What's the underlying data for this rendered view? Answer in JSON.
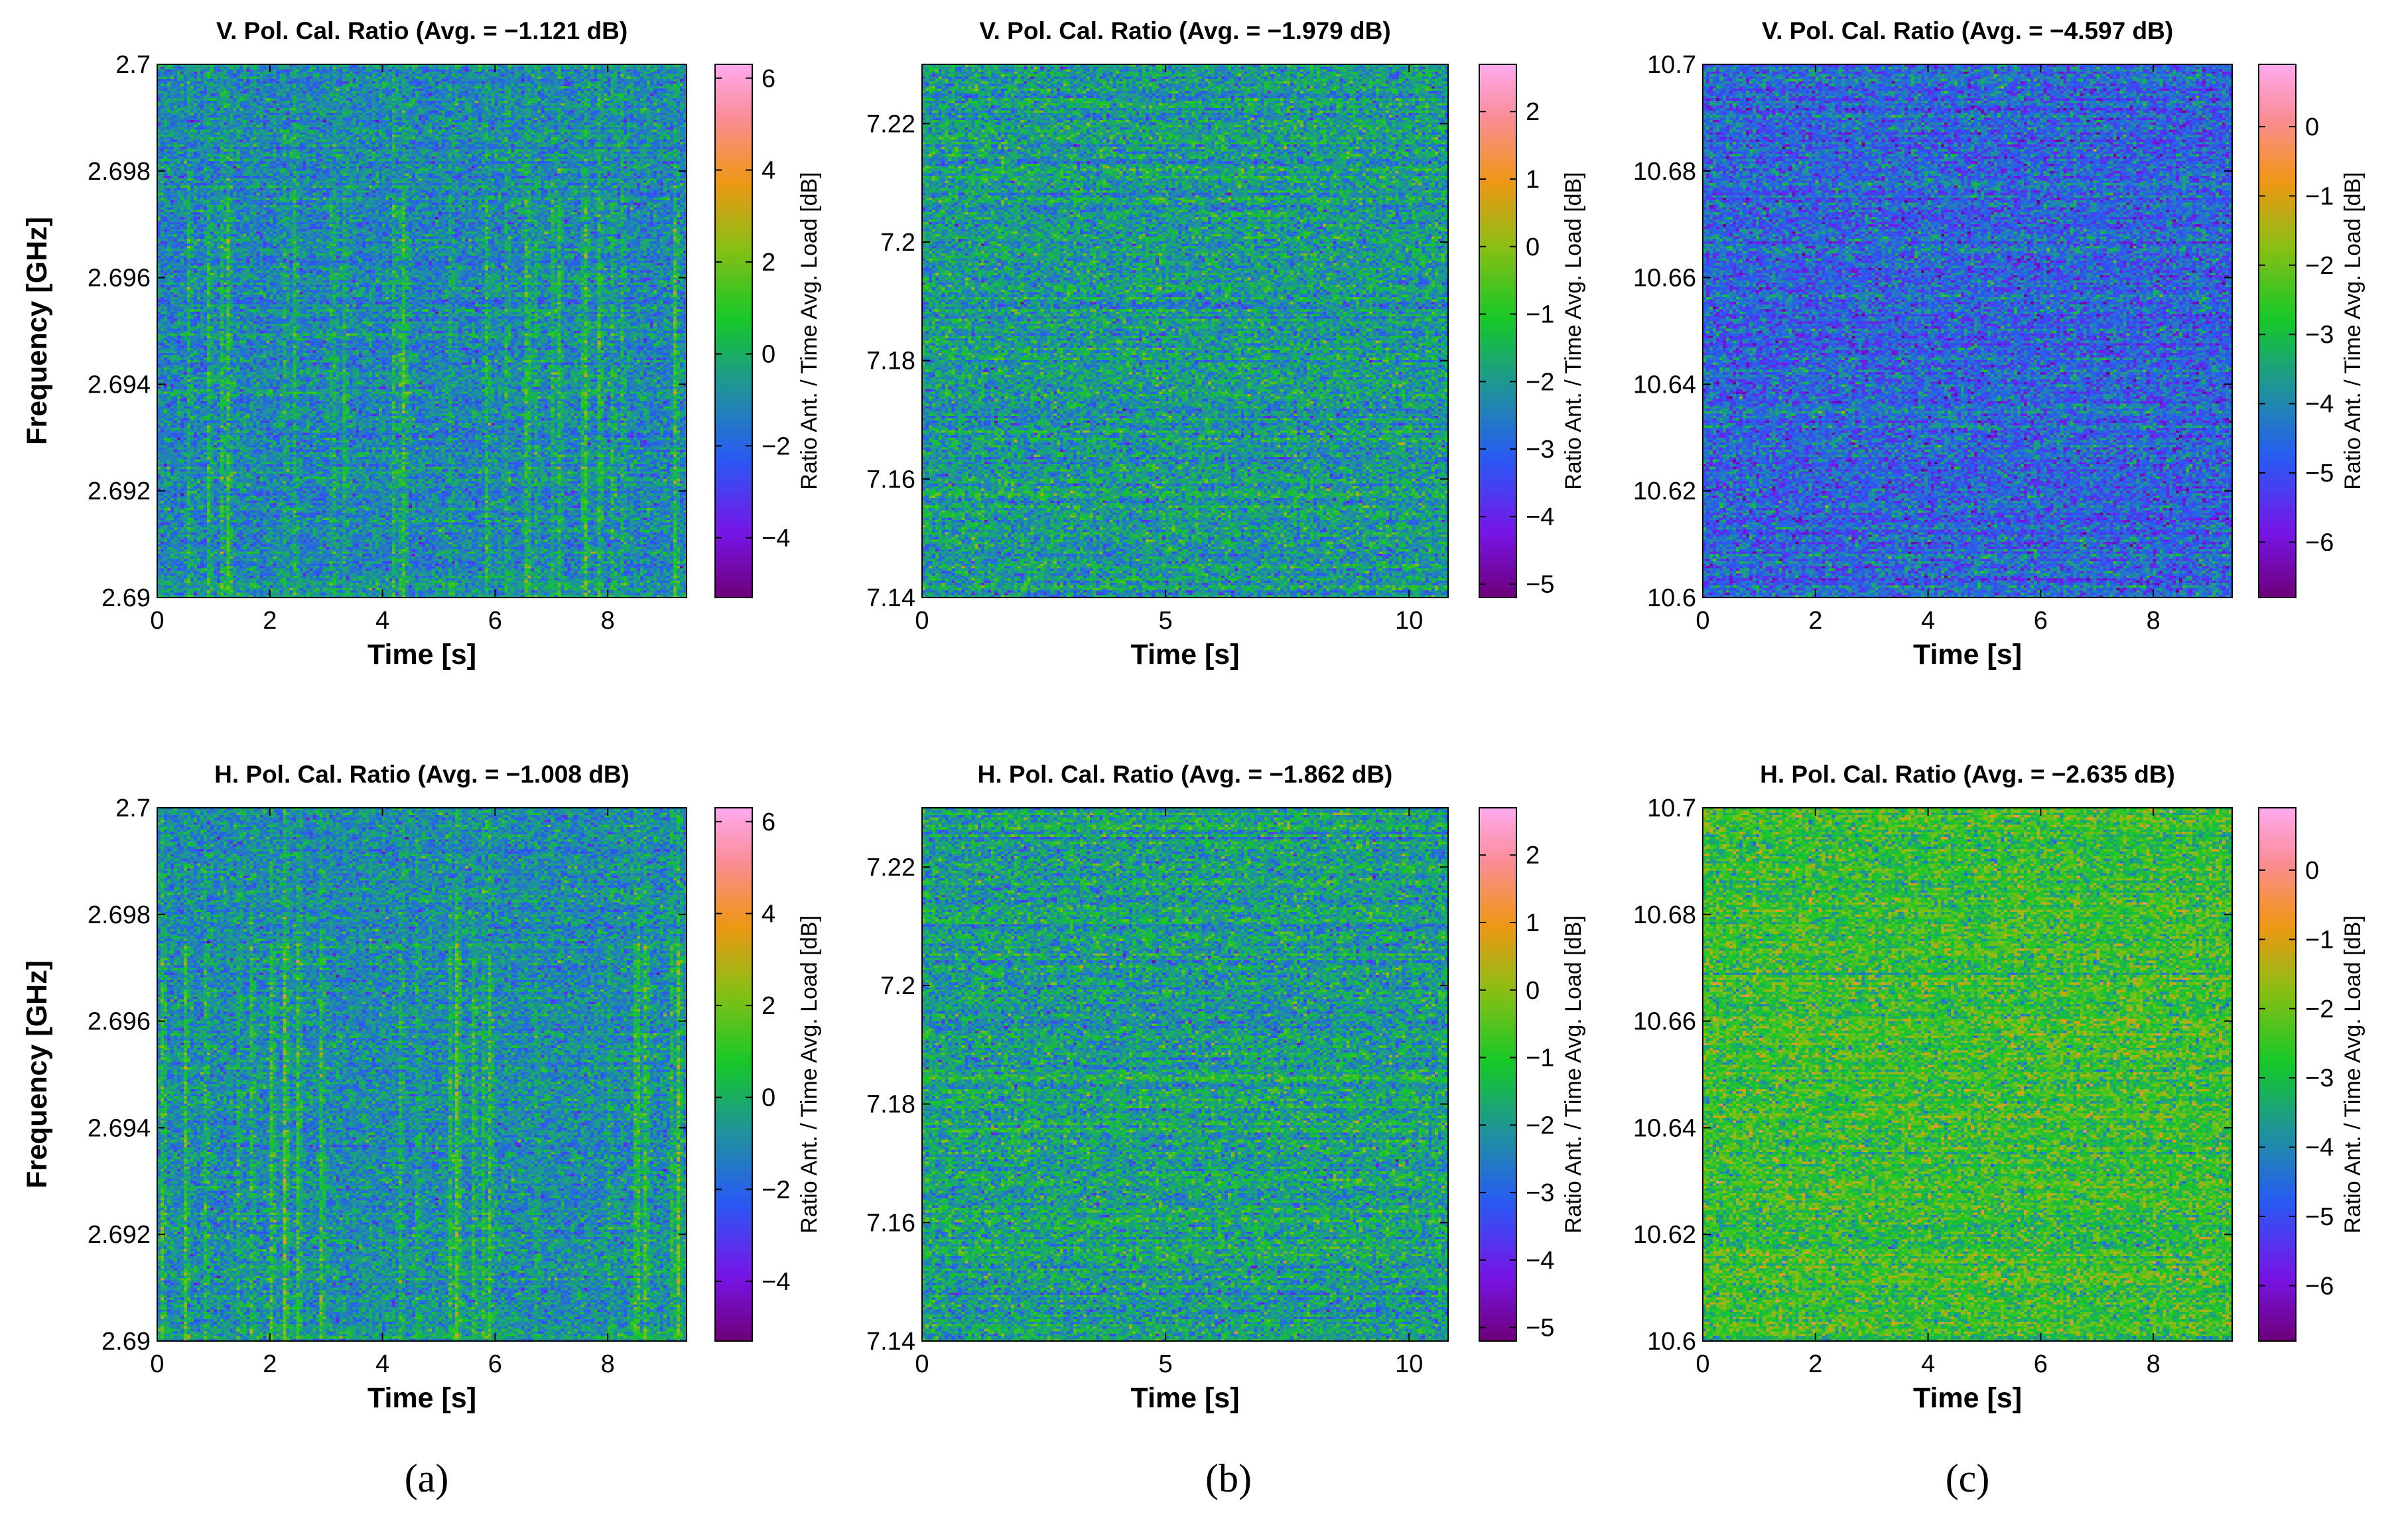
{
  "figure": {
    "panel_labels": [
      "(a)",
      "(b)",
      "(c)"
    ]
  },
  "chart_data": [
    {
      "type": "heatmap",
      "id": "a-top",
      "title": "V. Pol. Cal. Ratio (Avg. = −1.121 dB)",
      "xlabel": "Time [s]",
      "ylabel": "Frequency [GHz]",
      "colorbar_label": "Ratio Ant. / Time Avg. Load [dB]",
      "xlim": [
        0,
        9.4
      ],
      "ylim": [
        2.69,
        2.7
      ],
      "xticks": [
        0,
        2,
        4,
        6,
        8
      ],
      "xtick_labels": [
        "0",
        "2",
        "4",
        "6",
        "8"
      ],
      "yticks": [
        2.69,
        2.692,
        2.694,
        2.696,
        2.698,
        2.7
      ],
      "ytick_labels": [
        "2.69",
        "2.692",
        "2.694",
        "2.696",
        "2.698",
        "2.7"
      ],
      "clim": [
        -5.3,
        6.3
      ],
      "cticks": [
        -4,
        -2,
        0,
        2,
        4,
        6
      ],
      "ctick_labels": [
        "−4",
        "−2",
        "0",
        "2",
        "4",
        "6"
      ],
      "mean_db": -1.121,
      "spread_db": 0.9,
      "vertical_streaks": true
    },
    {
      "type": "heatmap",
      "id": "b-top",
      "title": "V. Pol. Cal. Ratio (Avg. = −1.979 dB)",
      "xlabel": "Time [s]",
      "ylabel": "",
      "colorbar_label": "Ratio Ant. / Time Avg. Load [dB]",
      "xlim": [
        0,
        10.8
      ],
      "ylim": [
        7.14,
        7.23
      ],
      "xticks": [
        0,
        5,
        10
      ],
      "xtick_labels": [
        "0",
        "5",
        "10"
      ],
      "yticks": [
        7.14,
        7.16,
        7.18,
        7.2,
        7.22
      ],
      "ytick_labels": [
        "7.14",
        "7.16",
        "7.18",
        "7.2",
        "7.22"
      ],
      "clim": [
        -5.2,
        2.7
      ],
      "cticks": [
        -5,
        -4,
        -3,
        -2,
        -1,
        0,
        1,
        2
      ],
      "ctick_labels": [
        "−5",
        "−4",
        "−3",
        "−2",
        "−1",
        "0",
        "1",
        "2"
      ],
      "mean_db": -1.979,
      "spread_db": 0.7,
      "vertical_streaks": false
    },
    {
      "type": "heatmap",
      "id": "c-top",
      "title": "V. Pol. Cal. Ratio (Avg. = −4.597 dB)",
      "xlabel": "Time [s]",
      "ylabel": "",
      "colorbar_label": "Ratio Ant. / Time Avg. Load [dB]",
      "xlim": [
        0,
        9.4
      ],
      "ylim": [
        10.6,
        10.7
      ],
      "xticks": [
        0,
        2,
        4,
        6,
        8
      ],
      "xtick_labels": [
        "0",
        "2",
        "4",
        "6",
        "8"
      ],
      "yticks": [
        10.6,
        10.62,
        10.64,
        10.66,
        10.68,
        10.7
      ],
      "ytick_labels": [
        "10.6",
        "10.62",
        "10.64",
        "10.66",
        "10.68",
        "10.7"
      ],
      "clim": [
        -6.8,
        0.9
      ],
      "cticks": [
        -6,
        -5,
        -4,
        -3,
        -2,
        -1,
        0
      ],
      "ctick_labels": [
        "−6",
        "−5",
        "−4",
        "−3",
        "−2",
        "−1",
        "0"
      ],
      "mean_db": -4.597,
      "spread_db": 0.7,
      "vertical_streaks": false
    },
    {
      "type": "heatmap",
      "id": "a-bottom",
      "title": "H. Pol. Cal. Ratio (Avg. = −1.008 dB)",
      "xlabel": "Time [s]",
      "ylabel": "Frequency [GHz]",
      "colorbar_label": "Ratio Ant. / Time Avg. Load [dB]",
      "xlim": [
        0,
        9.4
      ],
      "ylim": [
        2.69,
        2.7
      ],
      "xticks": [
        0,
        2,
        4,
        6,
        8
      ],
      "xtick_labels": [
        "0",
        "2",
        "4",
        "6",
        "8"
      ],
      "yticks": [
        2.69,
        2.692,
        2.694,
        2.696,
        2.698,
        2.7
      ],
      "ytick_labels": [
        "2.69",
        "2.692",
        "2.694",
        "2.696",
        "2.698",
        "2.7"
      ],
      "clim": [
        -5.3,
        6.3
      ],
      "cticks": [
        -4,
        -2,
        0,
        2,
        4,
        6
      ],
      "ctick_labels": [
        "−4",
        "−2",
        "0",
        "2",
        "4",
        "6"
      ],
      "mean_db": -1.008,
      "spread_db": 0.9,
      "vertical_streaks": true
    },
    {
      "type": "heatmap",
      "id": "b-bottom",
      "title": "H. Pol. Cal. Ratio (Avg. = −1.862 dB)",
      "xlabel": "Time [s]",
      "ylabel": "",
      "colorbar_label": "Ratio Ant. / Time Avg. Load [dB]",
      "xlim": [
        0,
        10.8
      ],
      "ylim": [
        7.14,
        7.23
      ],
      "xticks": [
        0,
        5,
        10
      ],
      "xtick_labels": [
        "0",
        "5",
        "10"
      ],
      "yticks": [
        7.14,
        7.16,
        7.18,
        7.2,
        7.22
      ],
      "ytick_labels": [
        "7.14",
        "7.16",
        "7.18",
        "7.2",
        "7.22"
      ],
      "clim": [
        -5.2,
        2.7
      ],
      "cticks": [
        -5,
        -4,
        -3,
        -2,
        -1,
        0,
        1,
        2
      ],
      "ctick_labels": [
        "−5",
        "−4",
        "−3",
        "−2",
        "−1",
        "0",
        "1",
        "2"
      ],
      "mean_db": -1.862,
      "spread_db": 0.7,
      "vertical_streaks": false
    },
    {
      "type": "heatmap",
      "id": "c-bottom",
      "title": "H. Pol. Cal. Ratio (Avg. = −2.635 dB)",
      "xlabel": "Time [s]",
      "ylabel": "",
      "colorbar_label": "Ratio Ant. / Time Avg. Load [dB]",
      "xlim": [
        0,
        9.4
      ],
      "ylim": [
        10.6,
        10.7
      ],
      "xticks": [
        0,
        2,
        4,
        6,
        8
      ],
      "xtick_labels": [
        "0",
        "2",
        "4",
        "6",
        "8"
      ],
      "yticks": [
        10.6,
        10.62,
        10.64,
        10.66,
        10.68,
        10.7
      ],
      "ytick_labels": [
        "10.6",
        "10.62",
        "10.64",
        "10.66",
        "10.68",
        "10.7"
      ],
      "clim": [
        -6.8,
        0.9
      ],
      "cticks": [
        -6,
        -5,
        -4,
        -3,
        -2,
        -1,
        0
      ],
      "ctick_labels": [
        "−6",
        "−5",
        "−4",
        "−3",
        "−2",
        "−1",
        "0"
      ],
      "mean_db": -2.635,
      "spread_db": 0.7,
      "vertical_streaks": false
    }
  ]
}
